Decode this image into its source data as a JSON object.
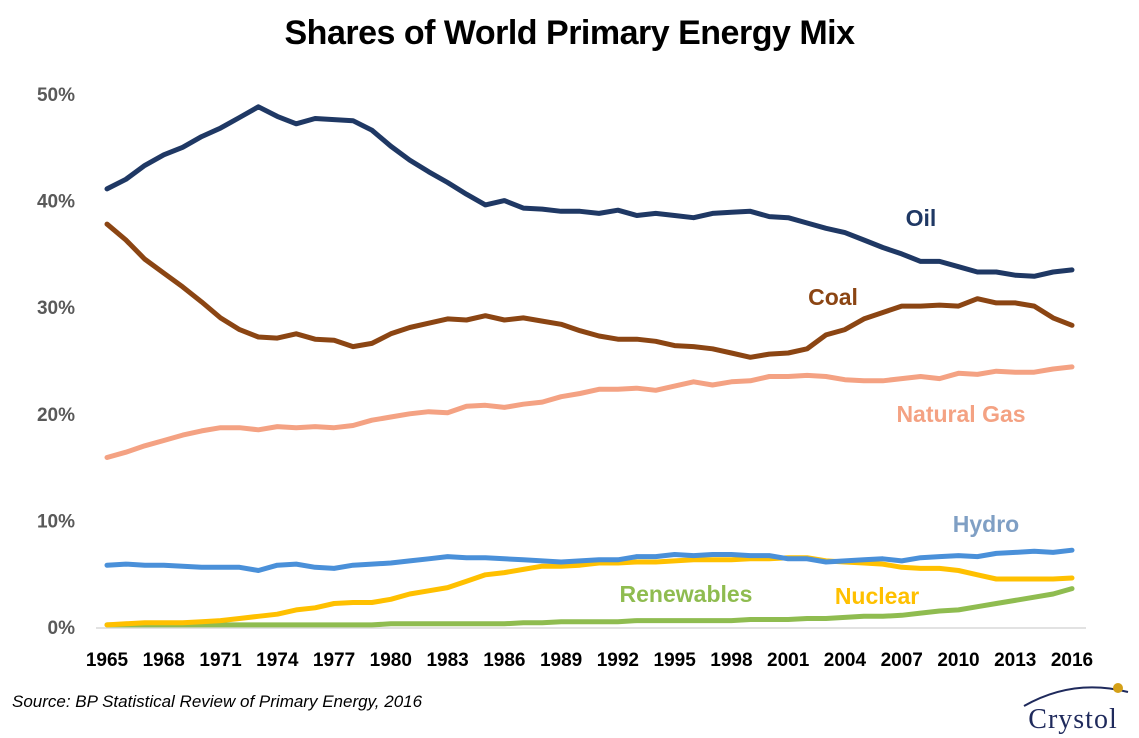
{
  "chart_data": {
    "type": "line",
    "title": "Shares of World Primary Energy Mix",
    "xlabel": "",
    "ylabel": "",
    "ylim": [
      0,
      50
    ],
    "y_ticks": [
      "0%",
      "10%",
      "20%",
      "30%",
      "40%",
      "50%"
    ],
    "x_ticks": [
      "1965",
      "1968",
      "1971",
      "1974",
      "1977",
      "1980",
      "1983",
      "1986",
      "1989",
      "1992",
      "1995",
      "1998",
      "2001",
      "2004",
      "2007",
      "2010",
      "2013",
      "2016"
    ],
    "x": [
      1965,
      1966,
      1967,
      1968,
      1969,
      1970,
      1971,
      1972,
      1973,
      1974,
      1975,
      1976,
      1977,
      1978,
      1979,
      1980,
      1981,
      1982,
      1983,
      1984,
      1985,
      1986,
      1987,
      1988,
      1989,
      1990,
      1991,
      1992,
      1993,
      1994,
      1995,
      1996,
      1997,
      1998,
      1999,
      2000,
      2001,
      2002,
      2003,
      2004,
      2005,
      2006,
      2007,
      2008,
      2009,
      2010,
      2011,
      2012,
      2013,
      2014,
      2015,
      2016
    ],
    "grid": false,
    "legend": "inline labels",
    "series": [
      {
        "name": "Oil",
        "color": "#1f3864",
        "values": [
          41.1,
          42.0,
          43.3,
          44.3,
          45.0,
          46.0,
          46.8,
          47.8,
          48.8,
          47.9,
          47.2,
          47.7,
          47.6,
          47.5,
          46.6,
          45.1,
          43.8,
          42.7,
          41.7,
          40.6,
          39.6,
          40.0,
          39.3,
          39.2,
          39.0,
          39.0,
          38.8,
          39.1,
          38.6,
          38.8,
          38.6,
          38.4,
          38.8,
          38.9,
          39.0,
          38.5,
          38.4,
          37.9,
          37.4,
          37.0,
          36.3,
          35.6,
          35.0,
          34.3,
          34.3,
          33.8,
          33.3,
          33.3,
          33.0,
          32.9,
          33.3,
          33.5
        ]
      },
      {
        "name": "Coal",
        "color": "#8b4513",
        "values": [
          37.8,
          36.3,
          34.5,
          33.2,
          31.9,
          30.5,
          29.0,
          27.9,
          27.2,
          27.1,
          27.5,
          27.0,
          26.9,
          26.3,
          26.6,
          27.5,
          28.1,
          28.5,
          28.9,
          28.8,
          29.2,
          28.8,
          29.0,
          28.7,
          28.4,
          27.8,
          27.3,
          27.0,
          27.0,
          26.8,
          26.4,
          26.3,
          26.1,
          25.7,
          25.3,
          25.6,
          25.7,
          26.1,
          27.4,
          27.9,
          28.9,
          29.5,
          30.1,
          30.1,
          30.2,
          30.1,
          30.8,
          30.4,
          30.4,
          30.1,
          29.0,
          28.3
        ]
      },
      {
        "name": "Natural Gas",
        "color": "#f4a283",
        "values": [
          15.9,
          16.4,
          17.0,
          17.5,
          18.0,
          18.4,
          18.7,
          18.7,
          18.5,
          18.8,
          18.7,
          18.8,
          18.7,
          18.9,
          19.4,
          19.7,
          20.0,
          20.2,
          20.1,
          20.7,
          20.8,
          20.6,
          20.9,
          21.1,
          21.6,
          21.9,
          22.3,
          22.3,
          22.4,
          22.2,
          22.6,
          23.0,
          22.7,
          23.0,
          23.1,
          23.5,
          23.5,
          23.6,
          23.5,
          23.2,
          23.1,
          23.1,
          23.3,
          23.5,
          23.3,
          23.8,
          23.7,
          24.0,
          23.9,
          23.9,
          24.2,
          24.4
        ]
      },
      {
        "name": "Hydro",
        "color": "#4a90d9",
        "values": [
          5.8,
          5.9,
          5.8,
          5.8,
          5.7,
          5.6,
          5.6,
          5.6,
          5.3,
          5.8,
          5.9,
          5.6,
          5.5,
          5.8,
          5.9,
          6.0,
          6.2,
          6.4,
          6.6,
          6.5,
          6.5,
          6.4,
          6.3,
          6.2,
          6.1,
          6.2,
          6.3,
          6.3,
          6.6,
          6.6,
          6.8,
          6.7,
          6.8,
          6.8,
          6.7,
          6.7,
          6.4,
          6.4,
          6.1,
          6.2,
          6.3,
          6.4,
          6.2,
          6.5,
          6.6,
          6.7,
          6.6,
          6.9,
          7.0,
          7.1,
          7.0,
          7.2
        ]
      },
      {
        "name": "Nuclear",
        "color": "#ffc000",
        "values": [
          0.2,
          0.3,
          0.4,
          0.4,
          0.4,
          0.5,
          0.6,
          0.8,
          1.0,
          1.2,
          1.6,
          1.8,
          2.2,
          2.3,
          2.3,
          2.6,
          3.1,
          3.4,
          3.7,
          4.3,
          4.9,
          5.1,
          5.4,
          5.7,
          5.7,
          5.8,
          6.0,
          6.0,
          6.1,
          6.1,
          6.2,
          6.3,
          6.3,
          6.3,
          6.4,
          6.4,
          6.5,
          6.5,
          6.2,
          6.1,
          6.0,
          5.9,
          5.6,
          5.5,
          5.5,
          5.3,
          4.9,
          4.5,
          4.5,
          4.5,
          4.5,
          4.6
        ]
      },
      {
        "name": "Renewables",
        "color": "#8fbc50",
        "values": [
          0.2,
          0.2,
          0.2,
          0.2,
          0.2,
          0.2,
          0.2,
          0.2,
          0.2,
          0.2,
          0.2,
          0.2,
          0.2,
          0.2,
          0.2,
          0.3,
          0.3,
          0.3,
          0.3,
          0.3,
          0.3,
          0.3,
          0.4,
          0.4,
          0.5,
          0.5,
          0.5,
          0.5,
          0.6,
          0.6,
          0.6,
          0.6,
          0.6,
          0.6,
          0.7,
          0.7,
          0.7,
          0.8,
          0.8,
          0.9,
          1.0,
          1.0,
          1.1,
          1.3,
          1.5,
          1.6,
          1.9,
          2.2,
          2.5,
          2.8,
          3.1,
          3.6
        ]
      }
    ],
    "annotations": [
      {
        "text": "Oil",
        "color": "#1f3864"
      },
      {
        "text": "Coal",
        "color": "#8b4513"
      },
      {
        "text": "Natural Gas",
        "color": "#f4a283"
      },
      {
        "text": "Hydro",
        "color": "#7f9fc4"
      },
      {
        "text": "Renewables",
        "color": "#8fbc50"
      },
      {
        "text": "Nuclear",
        "color": "#ffc000"
      }
    ]
  },
  "source": "Source: BP Statistical Review of Primary Energy, 2016",
  "logo": {
    "text": "Crystol"
  }
}
